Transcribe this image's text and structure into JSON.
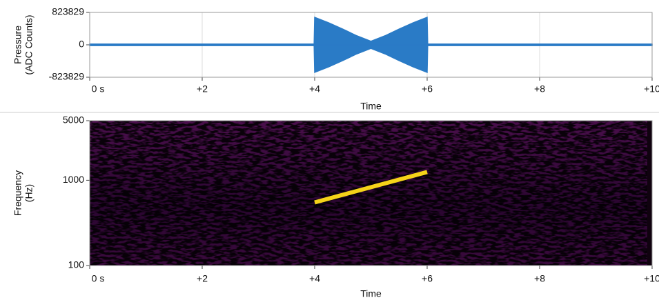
{
  "chart_data": [
    {
      "type": "waveform",
      "ylabel": [
        "Pressure",
        "(ADC Counts)"
      ],
      "xlabel": "Time",
      "x": [
        0,
        3.99,
        4,
        4.25,
        4.5,
        4.75,
        5,
        5.25,
        5.5,
        5.75,
        6,
        6.01,
        10
      ],
      "values": [
        20000,
        20000,
        700000,
        560000,
        400000,
        230000,
        90000,
        230000,
        400000,
        560000,
        700000,
        20000,
        20000
      ],
      "color": "#2a7bc6",
      "xlim": [
        0,
        10
      ],
      "xticks": [
        {
          "value": 0,
          "label": "0 s"
        },
        {
          "value": 2,
          "label": "+2"
        },
        {
          "value": 4,
          "label": "+4"
        },
        {
          "value": 6,
          "label": "+6"
        },
        {
          "value": 8,
          "label": "+8"
        },
        {
          "value": 10,
          "label": "+10"
        }
      ],
      "ylim": [
        -823829,
        823829
      ],
      "yticks": [
        823829,
        0,
        -823829
      ],
      "grid": true
    },
    {
      "type": "spectrogram",
      "ylabel": [
        "Frequency",
        "(Hz)"
      ],
      "xlabel": "Time",
      "x": [
        4,
        6
      ],
      "values": [
        550,
        1250
      ],
      "color": "#f5d319",
      "xlim": [
        0,
        10
      ],
      "xticks": [
        {
          "value": 0,
          "label": "0 s"
        },
        {
          "value": 2,
          "label": "+2"
        },
        {
          "value": 4,
          "label": "+4"
        },
        {
          "value": 6,
          "label": "+6"
        },
        {
          "value": 8,
          "label": "+8"
        },
        {
          "value": 10,
          "label": "+10"
        }
      ],
      "ylim": [
        100,
        5000
      ],
      "yticks": [
        100,
        1000,
        5000
      ],
      "log_y": true
    }
  ]
}
